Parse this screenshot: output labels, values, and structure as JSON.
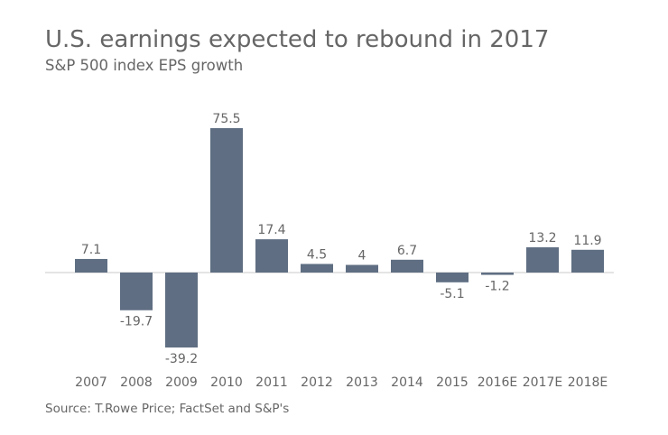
{
  "chart_data": {
    "type": "bar",
    "title": "U.S. earnings expected to rebound in 2017",
    "subtitle": "S&P 500 index EPS growth",
    "source": "Source: T.Rowe Price; FactSet and S&P's",
    "categories": [
      "2007",
      "2008",
      "2009",
      "2010",
      "2011",
      "2012",
      "2013",
      "2014",
      "2015",
      "2016E",
      "2017E",
      "2018E"
    ],
    "values": [
      7.1,
      -19.7,
      -39.2,
      75.5,
      17.4,
      4.5,
      4,
      6.7,
      -5.1,
      -1.2,
      13.2,
      11.9
    ],
    "data_labels": [
      "7.1",
      "-19.7",
      "-39.2",
      "75.5",
      "17.4",
      "4.5",
      "4",
      "6.7",
      "-5.1",
      "-1.2",
      "13.2",
      "11.9"
    ],
    "xlabel": "",
    "ylabel": "",
    "grid": false,
    "legend": "none",
    "bar_color": "#5f6e82",
    "text_color": "#666666"
  }
}
